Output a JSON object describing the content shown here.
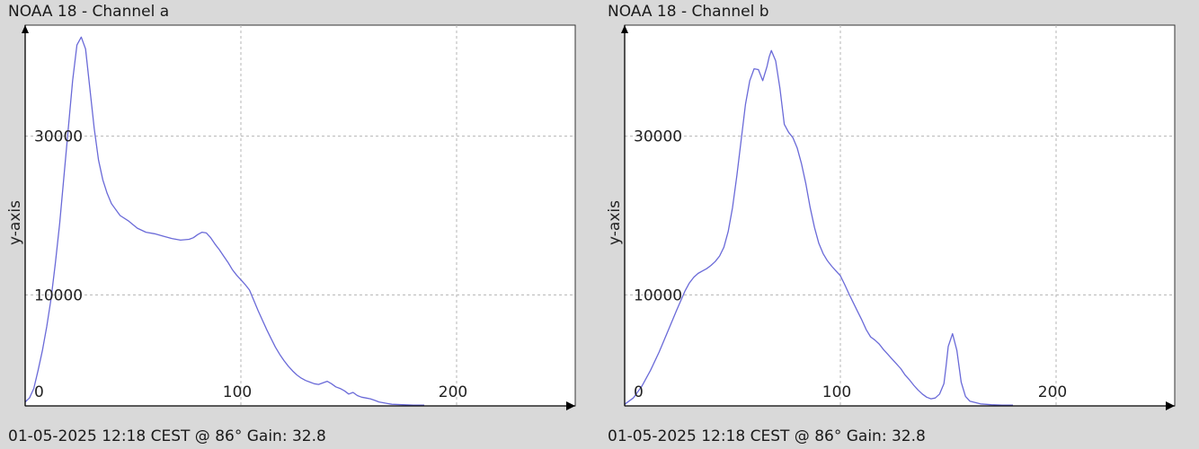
{
  "chart_data": [
    {
      "type": "line",
      "title": "NOAA 18 - Channel a",
      "footer": "01-05-2025 12:18 CEST @ 86° Gain: 32.8",
      "ylabel": "y-axis",
      "xlim": [
        0,
        255
      ],
      "ylim": [
        -4000,
        44000
      ],
      "xticks": [
        0,
        100,
        200
      ],
      "yticks": [
        10000,
        30000
      ],
      "series": [
        {
          "color": "#6a6ad8",
          "x": [
            0,
            2,
            4,
            6,
            8,
            10,
            12,
            14,
            16,
            18,
            20,
            22,
            24,
            26,
            28,
            30,
            32,
            34,
            36,
            38,
            40,
            44,
            48,
            52,
            56,
            60,
            64,
            68,
            72,
            76,
            78,
            80,
            82,
            84,
            86,
            88,
            90,
            92,
            94,
            96,
            98,
            100,
            102,
            104,
            106,
            108,
            110,
            112,
            114,
            116,
            118,
            120,
            122,
            124,
            126,
            128,
            130,
            132,
            134,
            136,
            138,
            140,
            142,
            144,
            146,
            148,
            150,
            152,
            154,
            156,
            158,
            160,
            162,
            164,
            166,
            168,
            170,
            175,
            180,
            185
          ],
          "y": [
            -3500,
            -3000,
            -1800,
            500,
            3000,
            6000,
            9500,
            14000,
            19000,
            25000,
            31000,
            37000,
            41500,
            42500,
            41000,
            36000,
            31000,
            27000,
            24500,
            22800,
            21500,
            20000,
            19300,
            18400,
            17900,
            17700,
            17400,
            17100,
            16900,
            17000,
            17200,
            17600,
            17900,
            17800,
            17200,
            16400,
            15700,
            14900,
            14100,
            13200,
            12500,
            11900,
            11300,
            10600,
            9300,
            8000,
            6800,
            5600,
            4500,
            3400,
            2500,
            1700,
            1000,
            400,
            -100,
            -500,
            -800,
            -1000,
            -1200,
            -1300,
            -1100,
            -900,
            -1200,
            -1600,
            -1800,
            -2100,
            -2500,
            -2300,
            -2700,
            -2900,
            -3000,
            -3100,
            -3300,
            -3500,
            -3600,
            -3700,
            -3800,
            -3850,
            -3900,
            -3900
          ]
        }
      ]
    },
    {
      "type": "line",
      "title": "NOAA 18 - Channel b",
      "footer": "01-05-2025 12:18 CEST @ 86° Gain: 32.8",
      "ylabel": "y-axis",
      "xlim": [
        0,
        255
      ],
      "ylim": [
        -4000,
        44000
      ],
      "xticks": [
        0,
        100,
        200
      ],
      "yticks": [
        10000,
        30000
      ],
      "series": [
        {
          "color": "#6a6ad8",
          "x": [
            0,
            4,
            8,
            12,
            16,
            20,
            24,
            28,
            30,
            32,
            34,
            36,
            38,
            40,
            42,
            44,
            46,
            48,
            50,
            52,
            54,
            56,
            58,
            60,
            62,
            64,
            66,
            67,
            68,
            70,
            72,
            74,
            76,
            78,
            80,
            82,
            84,
            86,
            88,
            90,
            92,
            94,
            96,
            98,
            100,
            102,
            104,
            106,
            108,
            110,
            112,
            114,
            116,
            118,
            120,
            122,
            124,
            126,
            128,
            130,
            132,
            134,
            136,
            138,
            140,
            142,
            144,
            146,
            148,
            149,
            150,
            152,
            154,
            156,
            158,
            160,
            165,
            170,
            175,
            180
          ],
          "y": [
            -3800,
            -3000,
            -1500,
            500,
            2800,
            5400,
            8000,
            10500,
            11500,
            12200,
            12700,
            13000,
            13300,
            13700,
            14200,
            14900,
            16000,
            18000,
            21000,
            25000,
            29500,
            34000,
            37000,
            38500,
            38400,
            37000,
            38800,
            40000,
            40800,
            39500,
            36000,
            31500,
            30500,
            29800,
            28500,
            26500,
            24000,
            21000,
            18500,
            16500,
            15200,
            14300,
            13600,
            13000,
            12400,
            11300,
            10100,
            9000,
            7900,
            6800,
            5600,
            4700,
            4300,
            3800,
            3100,
            2500,
            1900,
            1300,
            700,
            -100,
            -700,
            -1400,
            -2000,
            -2500,
            -2900,
            -3100,
            -3000,
            -2500,
            -1200,
            1000,
            3500,
            5100,
            3000,
            -1000,
            -2800,
            -3400,
            -3750,
            -3850,
            -3900,
            -3900
          ]
        }
      ]
    }
  ]
}
